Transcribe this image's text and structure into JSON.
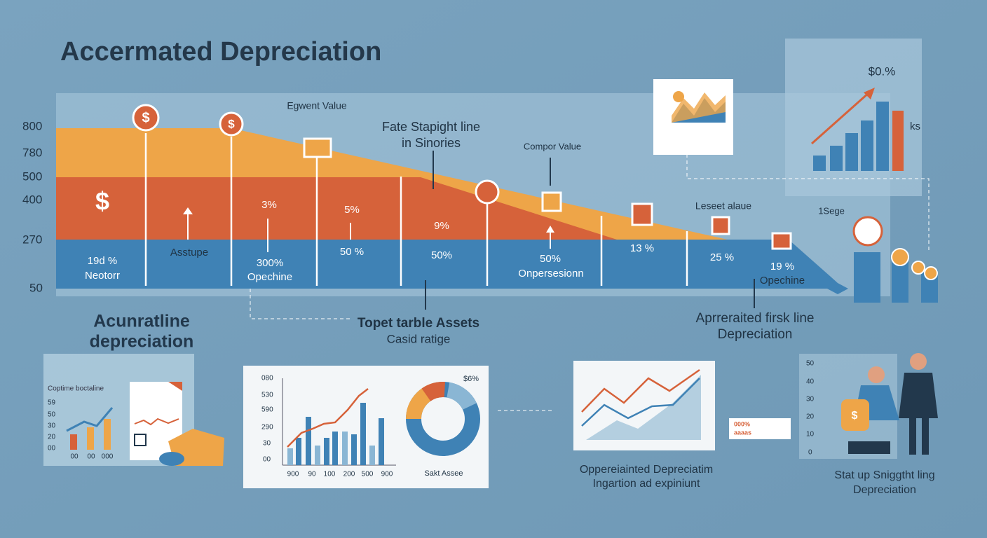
{
  "header": {
    "title": "Accermated Depreciation"
  },
  "main_chart": {
    "y_labels": [
      800,
      780,
      500,
      400,
      270,
      50
    ],
    "dollar": "$",
    "annotations": [
      "Egwent Value",
      "Fate Stapight line",
      "in Sinories",
      "Compor Value",
      "Leseet alaue",
      "1Sege"
    ],
    "band_labels": [
      "19d %",
      "Neotorr",
      "Asstupe",
      "3%",
      "300%",
      "Opechine",
      "5%",
      "50 %",
      "9%",
      "50%",
      "50%",
      "Onpersesionn",
      "13 %",
      "25 %",
      "19 %",
      "Opechine"
    ]
  },
  "captions": {
    "left": [
      "Acunratline",
      "depreciation"
    ],
    "center": [
      "Topet tarble Assets",
      "Casid ratige"
    ],
    "right": [
      "Aprreraited firsk line",
      "Depreciation"
    ]
  },
  "top_right_card": {
    "value": "$0.%",
    "note": "ks"
  },
  "left_card": {
    "title": "Coptime boctaline",
    "y_labels": [
      "59",
      "50",
      "30",
      "20",
      "00"
    ],
    "x_labels": [
      "00",
      "00",
      "000"
    ]
  },
  "center_card": {
    "y_labels": [
      "080",
      "530",
      "590",
      "290",
      "30",
      "00"
    ],
    "x_labels": [
      "900",
      "90",
      "100",
      "200",
      "500",
      "900"
    ],
    "donut_value": "$6%",
    "donut_label": "Sakt Assee"
  },
  "right_card": {
    "badge": [
      "000%",
      "aaaas"
    ],
    "caption": [
      "Oppereiainted Depreciatim",
      "Ingartion ad expiniunt"
    ]
  },
  "people_card": {
    "y_labels": [
      50,
      40,
      30,
      20,
      10,
      0
    ],
    "caption": [
      "Stat up Sniggtht ling",
      "Depreciation"
    ]
  }
}
